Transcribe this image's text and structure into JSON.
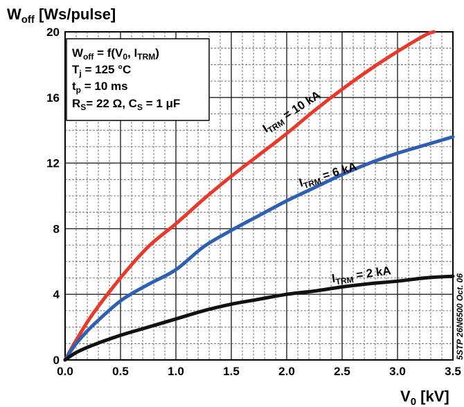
{
  "chart_data": {
    "type": "line",
    "y_axis": {
      "symbol": "W",
      "sub": "off",
      "unit": " [Ws/pulse]",
      "ylim": [
        0,
        20
      ],
      "ticks": [
        "0",
        "4",
        "8",
        "12",
        "16",
        "20"
      ]
    },
    "x_axis": {
      "symbol": "V",
      "sub": "0",
      "unit": " [kV]",
      "xlim": [
        0,
        3.5
      ],
      "ticks": [
        "0.0",
        "0.5",
        "1.0",
        "1.5",
        "2.0",
        "2.5",
        "3.0",
        "3.5"
      ]
    },
    "grid": true,
    "conditions": {
      "line1": {
        "a": "W",
        "a_sub": "off",
        "b": " = f(V",
        "b_sub": "0",
        "c": ", I",
        "c_sub": "TRM",
        "d": ")"
      },
      "line2": {
        "a": "T",
        "a_sub": "j",
        "b": " = 125 °C"
      },
      "line3": {
        "a": "t",
        "a_sub": "p",
        "b": " = 10 ms"
      },
      "line4": {
        "a": "R",
        "a_sub": "S",
        "b": "= 22 Ω, C",
        "b_sub": "S",
        "c": " = 1 μF"
      }
    },
    "series": [
      {
        "name_main": "I",
        "name_sub": "TRM",
        "name_rest": " = 10 kA",
        "color": "#e8392a",
        "x": [
          0,
          0.1,
          0.25,
          0.5,
          0.75,
          1.0,
          1.25,
          1.5,
          1.75,
          2.0,
          2.25,
          2.5,
          2.75,
          3.0,
          3.25,
          3.33
        ],
        "y": [
          0,
          1.2,
          2.8,
          5.0,
          6.9,
          8.3,
          9.8,
          11.2,
          12.5,
          13.8,
          15.2,
          16.5,
          17.7,
          18.8,
          19.8,
          20.0
        ]
      },
      {
        "name_main": "I",
        "name_sub": "TRM",
        "name_rest": " = 6 kA",
        "color": "#2d5fb3",
        "x": [
          0,
          0.1,
          0.25,
          0.5,
          0.75,
          1.0,
          1.25,
          1.5,
          1.75,
          2.0,
          2.25,
          2.5,
          2.75,
          3.0,
          3.25,
          3.5
        ],
        "y": [
          0,
          1.0,
          2.1,
          3.6,
          4.6,
          5.5,
          6.9,
          7.9,
          8.8,
          9.7,
          10.5,
          11.3,
          12.0,
          12.6,
          13.1,
          13.6
        ]
      },
      {
        "name_main": "I",
        "name_sub": "TRM",
        "name_rest": " = 2 kA",
        "color": "#111111",
        "x": [
          0,
          0.1,
          0.25,
          0.5,
          0.75,
          1.0,
          1.25,
          1.5,
          1.75,
          2.0,
          2.25,
          2.5,
          2.75,
          3.0,
          3.25,
          3.5
        ],
        "y": [
          0,
          0.45,
          0.9,
          1.5,
          2.0,
          2.5,
          3.0,
          3.4,
          3.7,
          4.0,
          4.2,
          4.45,
          4.65,
          4.8,
          5.0,
          5.1
        ]
      }
    ],
    "document_code": "5STP 26N6500 Oct. 06"
  }
}
